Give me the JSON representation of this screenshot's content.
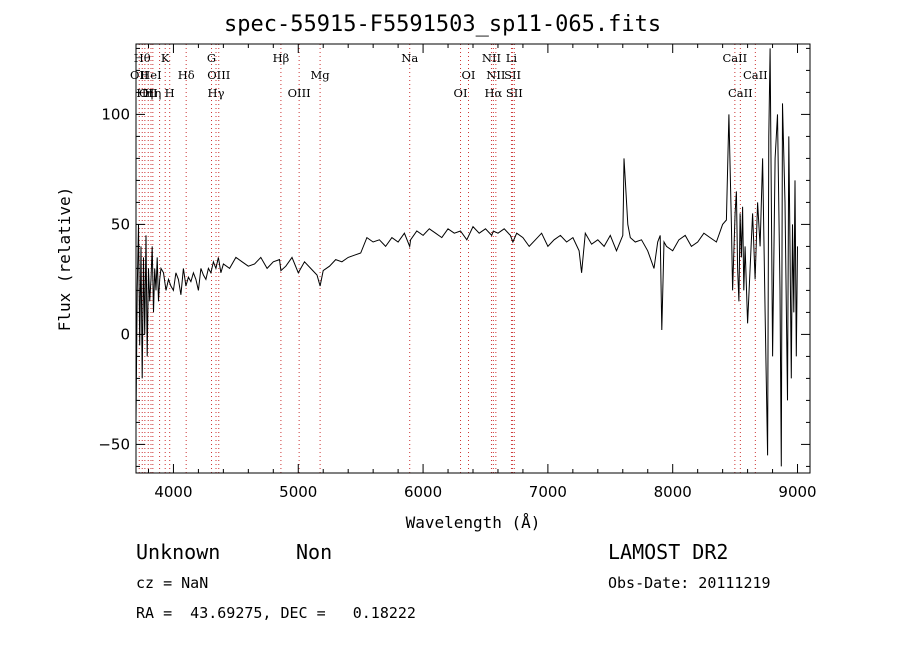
{
  "chart_data": {
    "type": "line",
    "title": "spec-55915-F5591503_sp11-065.fits",
    "xlabel": "Wavelength (Å)",
    "ylabel": "Flux (relative)",
    "xlim": [
      3700,
      9100
    ],
    "ylim": [
      -63,
      132
    ],
    "x_ticks": [
      4000,
      5000,
      6000,
      7000,
      8000,
      9000
    ],
    "y_ticks": [
      -50,
      0,
      50,
      100
    ],
    "grid": false,
    "series": [
      {
        "x": [
          3700,
          3710,
          3720,
          3730,
          3740,
          3750,
          3760,
          3770,
          3780,
          3790,
          3800,
          3810,
          3820,
          3830,
          3840,
          3850,
          3860,
          3870,
          3880,
          3890,
          3900,
          3920,
          3940,
          3960,
          3980,
          4000,
          4020,
          4040,
          4060,
          4080,
          4100,
          4120,
          4140,
          4160,
          4180,
          4200,
          4220,
          4240,
          4260,
          4280,
          4300,
          4320,
          4340,
          4360,
          4380,
          4400,
          4450,
          4500,
          4550,
          4600,
          4650,
          4700,
          4750,
          4800,
          4850,
          4861,
          4900,
          4950,
          5000,
          5050,
          5100,
          5150,
          5175,
          5200,
          5250,
          5300,
          5350,
          5400,
          5450,
          5500,
          5550,
          5600,
          5650,
          5700,
          5750,
          5800,
          5850,
          5893,
          5900,
          5950,
          6000,
          6050,
          6100,
          6150,
          6200,
          6250,
          6300,
          6350,
          6400,
          6450,
          6500,
          6550,
          6563,
          6600,
          6650,
          6700,
          6720,
          6750,
          6800,
          6850,
          6900,
          6950,
          7000,
          7050,
          7100,
          7150,
          7200,
          7250,
          7270,
          7300,
          7350,
          7400,
          7450,
          7500,
          7550,
          7600,
          7605,
          7610,
          7620,
          7640,
          7660,
          7700,
          7750,
          7800,
          7850,
          7880,
          7900,
          7913,
          7930,
          7950,
          8000,
          8050,
          8100,
          8150,
          8200,
          8250,
          8300,
          8350,
          8400,
          8430,
          8450,
          8470,
          8480,
          8500,
          8510,
          8520,
          8530,
          8540,
          8550,
          8560,
          8570,
          8580,
          8600,
          8620,
          8640,
          8660,
          8680,
          8700,
          8720,
          8740,
          8760,
          8770,
          8780,
          8800,
          8820,
          8840,
          8860,
          8870,
          8880,
          8900,
          8920,
          8930,
          8940,
          8950,
          8960,
          8970,
          8980,
          8990,
          9000
        ],
        "y": [
          -40,
          20,
          50,
          -5,
          40,
          -20,
          35,
          0,
          45,
          -10,
          30,
          15,
          25,
          40,
          10,
          30,
          20,
          35,
          15,
          25,
          30,
          28,
          20,
          25,
          22,
          20,
          28,
          25,
          18,
          30,
          22,
          26,
          24,
          28,
          25,
          20,
          30,
          27,
          25,
          30,
          28,
          33,
          30,
          35,
          28,
          32,
          30,
          35,
          33,
          31,
          32,
          35,
          30,
          33,
          34,
          29,
          31,
          35,
          28,
          33,
          30,
          27,
          22,
          29,
          31,
          34,
          33,
          35,
          36,
          37,
          44,
          42,
          43,
          40,
          44,
          42,
          46,
          40,
          43,
          47,
          45,
          48,
          46,
          44,
          48,
          46,
          47,
          43,
          49,
          46,
          48,
          45,
          47,
          46,
          48,
          45,
          42,
          46,
          44,
          40,
          43,
          46,
          40,
          43,
          45,
          42,
          44,
          38,
          28,
          46,
          41,
          43,
          40,
          45,
          38,
          45,
          60,
          80,
          70,
          50,
          44,
          42,
          43,
          38,
          30,
          42,
          45,
          2,
          42,
          40,
          38,
          43,
          45,
          40,
          42,
          46,
          44,
          42,
          50,
          52,
          100,
          50,
          20,
          55,
          65,
          30,
          15,
          55,
          35,
          58,
          20,
          40,
          5,
          30,
          55,
          25,
          60,
          40,
          80,
          10,
          -55,
          90,
          130,
          -10,
          80,
          100,
          20,
          -60,
          105,
          60,
          -30,
          90,
          40,
          -20,
          50,
          10,
          70,
          -10,
          40
        ]
      }
    ],
    "line_markers": [
      {
        "wl": 3726,
        "label": "OII",
        "row": 1
      },
      {
        "wl": 3750,
        "label": "Hθ",
        "row": 0
      },
      {
        "wl": 3771,
        "label": "Hη",
        "row": 2
      },
      {
        "wl": 3798,
        "label": "OII",
        "row": 2
      },
      {
        "wl": 3820,
        "label": "HeI",
        "row": 1
      },
      {
        "wl": 3835,
        "label": "Hη",
        "row": 2
      },
      {
        "wl": 3889,
        "label": "",
        "row": -1
      },
      {
        "wl": 3934,
        "label": "K",
        "row": 0
      },
      {
        "wl": 3970,
        "label": "H",
        "row": 2
      },
      {
        "wl": 4102,
        "label": "Hδ",
        "row": 1
      },
      {
        "wl": 4305,
        "label": "G",
        "row": 0
      },
      {
        "wl": 4341,
        "label": "Hγ",
        "row": 2
      },
      {
        "wl": 4363,
        "label": "OIII",
        "row": 1
      },
      {
        "wl": 4861,
        "label": "Hβ",
        "row": 0
      },
      {
        "wl": 5007,
        "label": "OIII",
        "row": 2
      },
      {
        "wl": 5175,
        "label": "Mg",
        "row": 1
      },
      {
        "wl": 5893,
        "label": "Na",
        "row": 0
      },
      {
        "wl": 6300,
        "label": "OI",
        "row": 2
      },
      {
        "wl": 6364,
        "label": "OI",
        "row": 1
      },
      {
        "wl": 6548,
        "label": "NII",
        "row": 0
      },
      {
        "wl": 6563,
        "label": "Hα",
        "row": 2
      },
      {
        "wl": 6583,
        "label": "NII",
        "row": 1
      },
      {
        "wl": 6708,
        "label": "Li",
        "row": 0
      },
      {
        "wl": 6717,
        "label": "SII",
        "row": 1
      },
      {
        "wl": 6731,
        "label": "SII",
        "row": 2
      },
      {
        "wl": 8498,
        "label": "CaII",
        "row": 0
      },
      {
        "wl": 8542,
        "label": "CaII",
        "row": 2
      },
      {
        "wl": 8662,
        "label": "CaII",
        "row": 1
      }
    ]
  },
  "footer": {
    "class_label": "Unknown",
    "subclass_label": "Non",
    "cz": "cz = NaN",
    "radec": "RA =  43.69275, DEC =   0.18222",
    "survey": "LAMOST DR2",
    "obs_date": "Obs-Date: 20111219"
  },
  "colors": {
    "spectrum": "#000000",
    "marker": "#cc3333",
    "axes": "#000000"
  }
}
